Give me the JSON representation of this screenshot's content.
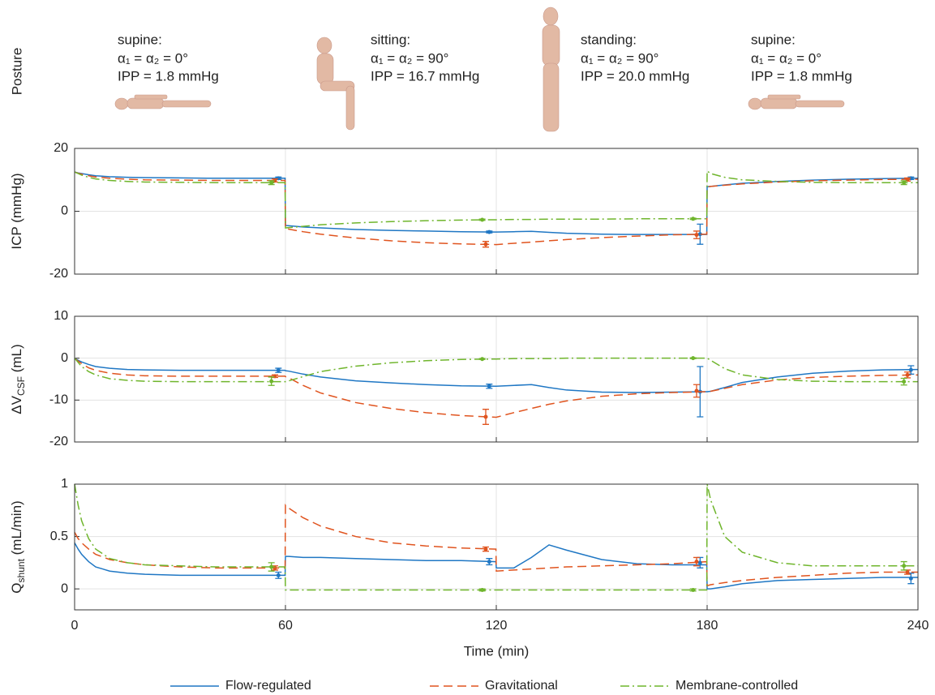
{
  "posture": {
    "label": "Posture",
    "panels": [
      {
        "name": "supine:",
        "lines": [
          "α₁ = α₂ = 0°",
          "IPP = 1.8 mmHg"
        ]
      },
      {
        "name": "sitting:",
        "lines": [
          "α₁ = α₂ = 90°",
          "IPP = 16.7 mmHg"
        ]
      },
      {
        "name": "standing:",
        "lines": [
          "α₁ = α₂ = 90°",
          "IPP = 20.0 mmHg"
        ]
      },
      {
        "name": "supine:",
        "lines": [
          "α₁ = α₂ = 0°",
          "IPP = 1.8 mmHg"
        ]
      }
    ]
  },
  "chart_data": [
    {
      "type": "line",
      "ylabel": [
        "ICP (mmHg)"
      ],
      "x": [
        0,
        1,
        2,
        4,
        6,
        10,
        15,
        20,
        30,
        40,
        50,
        59.9,
        60,
        61,
        65,
        70,
        80,
        90,
        100,
        110,
        119.9,
        120,
        125,
        130,
        135,
        140,
        150,
        160,
        170,
        179.9,
        180,
        181,
        185,
        190,
        200,
        210,
        220,
        230,
        240
      ],
      "xlim": [
        0,
        240
      ],
      "xticks": [
        0,
        60,
        120,
        180,
        240
      ],
      "ylim": [
        -20,
        20
      ],
      "yticks": [
        -20,
        0,
        20
      ],
      "grid": true,
      "series": [
        {
          "name": "Flow-regulated",
          "color": "#1f77c4",
          "dash": "solid",
          "values": [
            12.5,
            12.2,
            12,
            11.6,
            11.3,
            11,
            10.8,
            10.7,
            10.6,
            10.5,
            10.5,
            10.5,
            -4.5,
            -4.6,
            -5,
            -5.3,
            -5.8,
            -6.1,
            -6.3,
            -6.5,
            -6.6,
            -6.6,
            -6.5,
            -6.4,
            -6.7,
            -7,
            -7.3,
            -7.4,
            -7.4,
            -7.4,
            7.8,
            7.9,
            8.4,
            8.9,
            9.5,
            9.9,
            10.2,
            10.4,
            10.5
          ],
          "error_bars": [
            {
              "x": 58,
              "value": 10.5,
              "error": 0.4
            },
            {
              "x": 118,
              "value": -6.6,
              "error": 0.3
            },
            {
              "x": 178,
              "value": -7.3,
              "error": 3.2
            },
            {
              "x": 238,
              "value": 10.5,
              "error": 0.4
            }
          ]
        },
        {
          "name": "Gravitational",
          "color": "#e0541f",
          "dash": "dashed",
          "values": [
            12.5,
            12.1,
            11.8,
            11.3,
            10.9,
            10.5,
            10.2,
            10,
            9.9,
            9.8,
            9.8,
            9.8,
            -5.5,
            -5.7,
            -6.5,
            -7.3,
            -8.5,
            -9.4,
            -10,
            -10.4,
            -10.6,
            -10.6,
            -10.2,
            -9.8,
            -9.4,
            -9,
            -8.4,
            -7.9,
            -7.5,
            -7.3,
            7.8,
            7.9,
            8.3,
            8.7,
            9.3,
            9.7,
            9.9,
            10.1,
            10.2
          ],
          "error_bars": [
            {
              "x": 57,
              "value": 9.8,
              "error": 0.5
            },
            {
              "x": 117,
              "value": -10.5,
              "error": 0.9
            },
            {
              "x": 177,
              "value": -7.5,
              "error": 1.2
            },
            {
              "x": 237,
              "value": 10.1,
              "error": 0.5
            }
          ]
        },
        {
          "name": "Membrane-controlled",
          "color": "#6fb52c",
          "dash": "dashdot",
          "values": [
            12.5,
            12,
            11.5,
            10.8,
            10.3,
            9.8,
            9.5,
            9.3,
            9.2,
            9.1,
            9.1,
            9.1,
            -5.3,
            -5.2,
            -4.8,
            -4.3,
            -3.7,
            -3.3,
            -3,
            -2.8,
            -2.7,
            -2.7,
            -2.6,
            -2.6,
            -2.5,
            -2.5,
            -2.5,
            -2.4,
            -2.4,
            -2.4,
            12.8,
            12,
            10.8,
            10,
            9.5,
            9.2,
            9.1,
            9.1,
            9.1
          ],
          "error_bars": [
            {
              "x": 56,
              "value": 9.1,
              "error": 0.6
            },
            {
              "x": 116,
              "value": -2.7,
              "error": 0.2
            },
            {
              "x": 176,
              "value": -2.4,
              "error": 0.2
            },
            {
              "x": 236,
              "value": 9.1,
              "error": 0.6
            }
          ]
        }
      ]
    },
    {
      "type": "line",
      "ylabel": [
        "ΔV",
        "CSF",
        " (mL)"
      ],
      "x": [
        0,
        1,
        2,
        4,
        6,
        10,
        15,
        20,
        30,
        40,
        50,
        59.9,
        60,
        61,
        65,
        70,
        80,
        90,
        100,
        110,
        119.9,
        120,
        125,
        130,
        135,
        140,
        150,
        160,
        170,
        179.9,
        180,
        181,
        185,
        190,
        200,
        210,
        220,
        230,
        240
      ],
      "xlim": [
        0,
        240
      ],
      "xticks": [
        0,
        60,
        120,
        180,
        240
      ],
      "ylim": [
        -20,
        10
      ],
      "yticks": [
        -20,
        -10,
        0,
        10
      ],
      "grid": true,
      "series": [
        {
          "name": "Flow-regulated",
          "color": "#1f77c4",
          "dash": "solid",
          "values": [
            0,
            -0.5,
            -0.9,
            -1.5,
            -2,
            -2.4,
            -2.7,
            -2.8,
            -2.9,
            -2.9,
            -2.9,
            -2.9,
            -3,
            -3.1,
            -3.8,
            -4.5,
            -5.4,
            -5.9,
            -6.3,
            -6.6,
            -6.7,
            -6.7,
            -6.5,
            -6.3,
            -7,
            -7.6,
            -8.1,
            -8.2,
            -8.1,
            -8,
            -8,
            -7.9,
            -7,
            -5.8,
            -4.5,
            -3.6,
            -3.1,
            -2.8,
            -2.7
          ],
          "error_bars": [
            {
              "x": 58,
              "value": -2.9,
              "error": 0.5
            },
            {
              "x": 118,
              "value": -6.7,
              "error": 0.5
            },
            {
              "x": 178,
              "value": -8,
              "error": 6
            },
            {
              "x": 238,
              "value": -2.8,
              "error": 1
            }
          ]
        },
        {
          "name": "Gravitational",
          "color": "#e0541f",
          "dash": "dashed",
          "values": [
            0,
            -0.7,
            -1.3,
            -2.3,
            -2.9,
            -3.6,
            -4,
            -4.2,
            -4.3,
            -4.3,
            -4.3,
            -4.3,
            -4.4,
            -4.7,
            -6.5,
            -8.3,
            -10.6,
            -12,
            -13,
            -13.7,
            -14.1,
            -14.1,
            -13,
            -12,
            -11,
            -10.2,
            -9.1,
            -8.5,
            -8.2,
            -8,
            -8,
            -7.9,
            -7.2,
            -6.3,
            -5.2,
            -4.6,
            -4.3,
            -4.1,
            -4
          ],
          "error_bars": [
            {
              "x": 57,
              "value": -4.3,
              "error": 0.3
            },
            {
              "x": 117,
              "value": -14,
              "error": 1.8
            },
            {
              "x": 177,
              "value": -7.8,
              "error": 1.5
            },
            {
              "x": 237,
              "value": -4,
              "error": 0.7
            }
          ]
        },
        {
          "name": "Membrane-controlled",
          "color": "#6fb52c",
          "dash": "dashdot",
          "values": [
            0,
            -1,
            -2,
            -3.2,
            -4,
            -4.9,
            -5.3,
            -5.5,
            -5.6,
            -5.6,
            -5.6,
            -5.6,
            -5.6,
            -5.4,
            -4.4,
            -3.2,
            -1.9,
            -1.1,
            -0.6,
            -0.3,
            -0.2,
            -0.2,
            -0.1,
            -0.1,
            -0.1,
            0,
            0,
            0,
            0,
            0,
            0,
            -0.5,
            -2.5,
            -4,
            -5.1,
            -5.5,
            -5.6,
            -5.6,
            -5.6
          ],
          "error_bars": [
            {
              "x": 56,
              "value": -5.5,
              "error": 1
            },
            {
              "x": 116,
              "value": -0.2,
              "error": 0.1
            },
            {
              "x": 176,
              "value": 0,
              "error": 0.1
            },
            {
              "x": 236,
              "value": -5.6,
              "error": 0.8
            }
          ]
        }
      ]
    },
    {
      "type": "line",
      "ylabel": [
        "Q",
        "shunt",
        " (mL/min)"
      ],
      "xlabel": "Time (min)",
      "x": [
        0,
        1,
        2,
        4,
        6,
        10,
        15,
        20,
        30,
        40,
        50,
        59.9,
        60,
        61,
        65,
        70,
        80,
        90,
        100,
        110,
        119.9,
        120,
        125,
        130,
        135,
        140,
        150,
        160,
        170,
        179.9,
        180,
        181,
        185,
        190,
        200,
        210,
        220,
        230,
        240
      ],
      "xlim": [
        0,
        240
      ],
      "xticks": [
        0,
        60,
        120,
        180,
        240
      ],
      "ylim": [
        -0.2,
        1
      ],
      "yticks": [
        0,
        0.5,
        1
      ],
      "grid": true,
      "series": [
        {
          "name": "Flow-regulated",
          "color": "#1f77c4",
          "dash": "solid",
          "values": [
            0.44,
            0.38,
            0.33,
            0.26,
            0.21,
            0.17,
            0.15,
            0.14,
            0.13,
            0.13,
            0.13,
            0.13,
            0.31,
            0.31,
            0.3,
            0.3,
            0.29,
            0.28,
            0.27,
            0.27,
            0.26,
            0.2,
            0.2,
            0.3,
            0.42,
            0.37,
            0.28,
            0.24,
            0.23,
            0.23,
            0,
            0,
            0.02,
            0.05,
            0.08,
            0.09,
            0.1,
            0.11,
            0.11
          ],
          "error_bars": [
            {
              "x": 58,
              "value": 0.13,
              "error": 0.03
            },
            {
              "x": 118,
              "value": 0.26,
              "error": 0.03
            },
            {
              "x": 178,
              "value": 0.25,
              "error": 0.05
            },
            {
              "x": 238,
              "value": 0.1,
              "error": 0.05
            }
          ]
        },
        {
          "name": "Gravitational",
          "color": "#e0541f",
          "dash": "dashed",
          "values": [
            0.54,
            0.48,
            0.44,
            0.38,
            0.33,
            0.28,
            0.25,
            0.23,
            0.21,
            0.2,
            0.2,
            0.2,
            0.8,
            0.77,
            0.68,
            0.6,
            0.5,
            0.44,
            0.41,
            0.39,
            0.38,
            0.17,
            0.18,
            0.19,
            0.2,
            0.21,
            0.22,
            0.23,
            0.24,
            0.26,
            0.03,
            0.04,
            0.06,
            0.08,
            0.11,
            0.13,
            0.15,
            0.16,
            0.16
          ],
          "error_bars": [
            {
              "x": 57,
              "value": 0.2,
              "error": 0.02
            },
            {
              "x": 117,
              "value": 0.38,
              "error": 0.02
            },
            {
              "x": 177,
              "value": 0.26,
              "error": 0.04
            },
            {
              "x": 237,
              "value": 0.16,
              "error": 0.02
            }
          ]
        },
        {
          "name": "Membrane-controlled",
          "color": "#6fb52c",
          "dash": "dashdot",
          "values": [
            1,
            0.8,
            0.65,
            0.48,
            0.38,
            0.29,
            0.25,
            0.23,
            0.22,
            0.21,
            0.21,
            0.21,
            -0.01,
            -0.01,
            -0.01,
            -0.01,
            -0.01,
            -0.01,
            -0.01,
            -0.01,
            -0.01,
            -0.01,
            -0.01,
            -0.01,
            -0.01,
            -0.01,
            -0.01,
            -0.01,
            -0.01,
            -0.01,
            1,
            0.85,
            0.5,
            0.35,
            0.25,
            0.22,
            0.22,
            0.22,
            0.22
          ],
          "error_bars": [
            {
              "x": 56,
              "value": 0.21,
              "error": 0.04
            },
            {
              "x": 116,
              "value": -0.01,
              "error": 0.01
            },
            {
              "x": 176,
              "value": -0.01,
              "error": 0.01
            },
            {
              "x": 236,
              "value": 0.22,
              "error": 0.04
            }
          ]
        }
      ]
    }
  ]
}
